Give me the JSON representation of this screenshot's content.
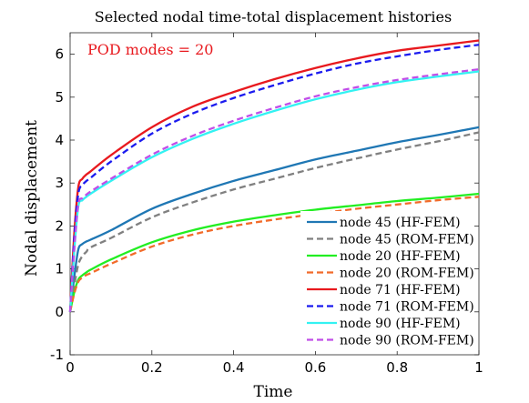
{
  "chart_data": {
    "type": "line",
    "title": "Selected nodal time-total displacement histories",
    "xlabel": "Time",
    "ylabel": "Nodal displacement",
    "annotation": "POD modes = 20",
    "annotation_color": "#e8191e",
    "xlim": [
      0,
      1
    ],
    "ylim": [
      -1,
      6.5
    ],
    "xticks": [
      "0",
      "0.2",
      "0.4",
      "0.6",
      "0.8",
      "1"
    ],
    "xtick_values": [
      0,
      0.2,
      0.4,
      0.6,
      0.8,
      1
    ],
    "yticks": [
      "-1",
      "0",
      "1",
      "2",
      "3",
      "4",
      "5",
      "6"
    ],
    "ytick_values": [
      -1,
      0,
      1,
      2,
      3,
      4,
      5,
      6
    ],
    "grid": false,
    "legend_position": "bottom-right",
    "x": [
      0,
      0.01,
      0.02,
      0.03,
      0.04,
      0.05,
      0.1,
      0.2,
      0.3,
      0.4,
      0.5,
      0.6,
      0.7,
      0.8,
      0.9,
      1.0
    ],
    "series": [
      {
        "name": "node 45 (HF-FEM)",
        "color": "#1f77b4",
        "dash": "solid",
        "values": [
          0,
          0.8,
          1.45,
          1.58,
          1.64,
          1.68,
          1.9,
          2.4,
          2.75,
          3.05,
          3.3,
          3.55,
          3.75,
          3.95,
          4.12,
          4.3
        ]
      },
      {
        "name": "node 45 (ROM-FEM)",
        "color": "#808080",
        "dash": "dashed",
        "values": [
          0,
          0.6,
          1.1,
          1.3,
          1.4,
          1.5,
          1.72,
          2.2,
          2.55,
          2.85,
          3.1,
          3.35,
          3.57,
          3.78,
          3.97,
          4.18
        ]
      },
      {
        "name": "node 20 (HF-FEM)",
        "color": "#22ee22",
        "dash": "solid",
        "values": [
          0,
          0.45,
          0.75,
          0.85,
          0.92,
          0.98,
          1.22,
          1.62,
          1.9,
          2.1,
          2.25,
          2.38,
          2.48,
          2.58,
          2.66,
          2.75
        ]
      },
      {
        "name": "node 20 (ROM-FEM)",
        "color": "#f26b2a",
        "dash": "dashed",
        "values": [
          0,
          0.42,
          0.7,
          0.8,
          0.86,
          0.9,
          1.12,
          1.52,
          1.8,
          2.0,
          2.15,
          2.28,
          2.4,
          2.5,
          2.6,
          2.68
        ]
      },
      {
        "name": "node 71 (HF-FEM)",
        "color": "#e8191e",
        "dash": "solid",
        "values": [
          0,
          1.8,
          2.9,
          3.1,
          3.2,
          3.27,
          3.65,
          4.3,
          4.78,
          5.12,
          5.42,
          5.68,
          5.9,
          6.08,
          6.2,
          6.32
        ]
      },
      {
        "name": "node 71 (ROM-FEM)",
        "color": "#1b1bef",
        "dash": "dashed",
        "values": [
          0,
          1.7,
          2.75,
          2.95,
          3.05,
          3.12,
          3.5,
          4.15,
          4.62,
          4.98,
          5.28,
          5.55,
          5.78,
          5.95,
          6.1,
          6.22
        ]
      },
      {
        "name": "node 90 (HF-FEM)",
        "color": "#33f2f2",
        "dash": "solid",
        "values": [
          0,
          1.4,
          2.45,
          2.6,
          2.68,
          2.75,
          3.05,
          3.6,
          4.03,
          4.38,
          4.68,
          4.95,
          5.17,
          5.35,
          5.48,
          5.6
        ]
      },
      {
        "name": "node 90 (ROM-FEM)",
        "color": "#c14ee8",
        "dash": "dashed",
        "values": [
          0,
          1.45,
          2.5,
          2.65,
          2.73,
          2.8,
          3.1,
          3.66,
          4.1,
          4.45,
          4.75,
          5.02,
          5.23,
          5.4,
          5.53,
          5.65
        ]
      }
    ]
  }
}
